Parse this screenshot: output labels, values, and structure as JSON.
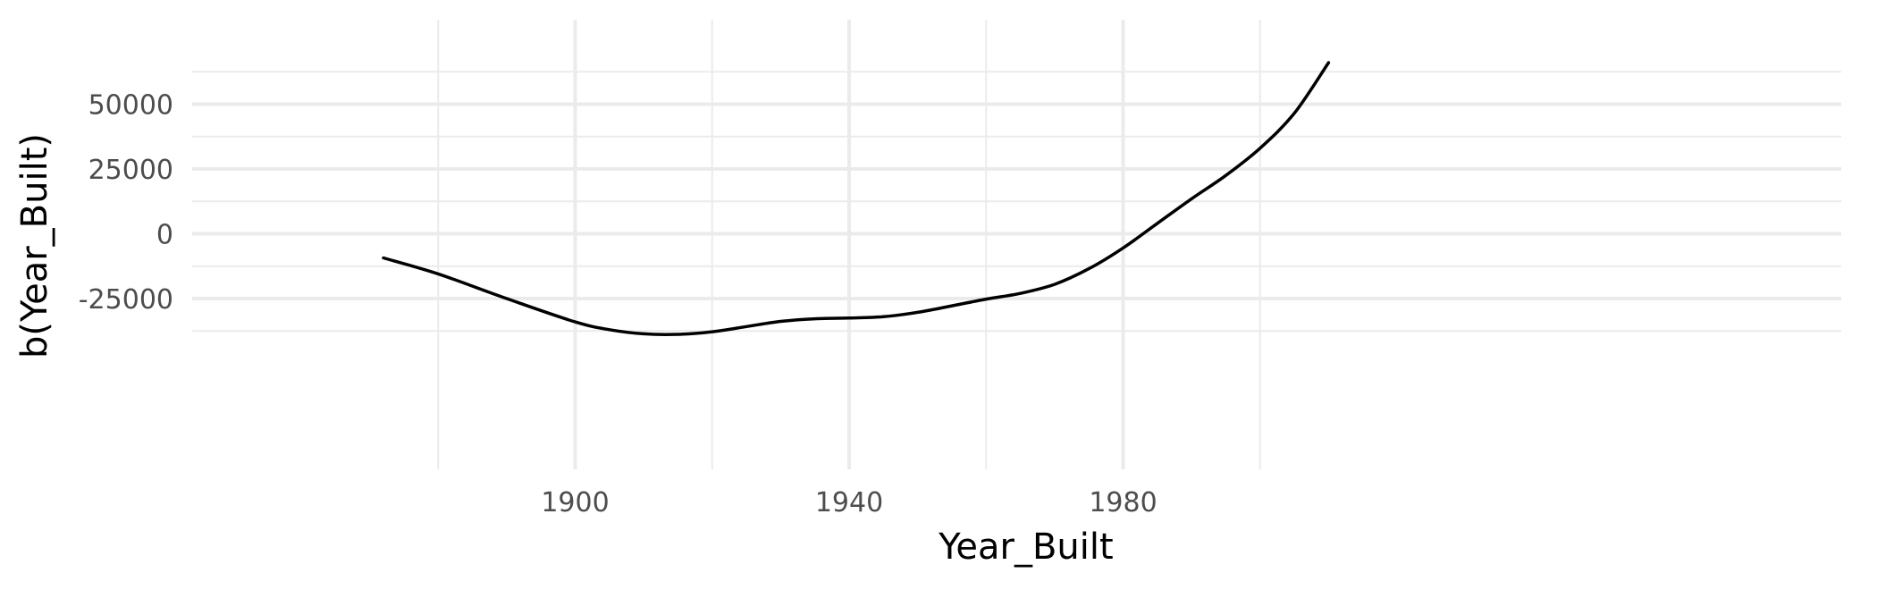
{
  "chart_data": {
    "type": "line",
    "title": "",
    "xlabel": "Year_Built",
    "ylabel": "b(Year_Built)",
    "xlim": [
      1865,
      2015
    ],
    "ylim": [
      -40000,
      65000
    ],
    "x_ticks": [
      1900,
      1940,
      1980
    ],
    "x_tick_labels": [
      "1900",
      "1940",
      "1980"
    ],
    "x_minor_ticks": [
      1880,
      1920,
      1960,
      2000
    ],
    "y_ticks": [
      -25000,
      0,
      25000,
      50000
    ],
    "y_tick_labels": [
      "-25000",
      "0",
      "25000",
      "50000"
    ],
    "y_minor_ticks": [
      -37500,
      -12500,
      12500,
      37500,
      62500
    ],
    "grid": true,
    "legend": "none",
    "line_color": "#000000",
    "grid_color": "#ebebeb",
    "series": [
      {
        "x": [
          1872,
          1880,
          1890,
          1900,
          1905,
          1910,
          1915,
          1920,
          1925,
          1930,
          1935,
          1940,
          1945,
          1950,
          1955,
          1960,
          1965,
          1970,
          1975,
          1980,
          1985,
          1990,
          1995,
          2000,
          2005,
          2010
        ],
        "values": [
          -9300,
          -15500,
          -25000,
          -34000,
          -37000,
          -38600,
          -38800,
          -37800,
          -35800,
          -33800,
          -32800,
          -32500,
          -32000,
          -30300,
          -27800,
          -25200,
          -23000,
          -19500,
          -13500,
          -5500,
          4000,
          13500,
          22500,
          33000,
          46500,
          66000
        ]
      }
    ]
  }
}
